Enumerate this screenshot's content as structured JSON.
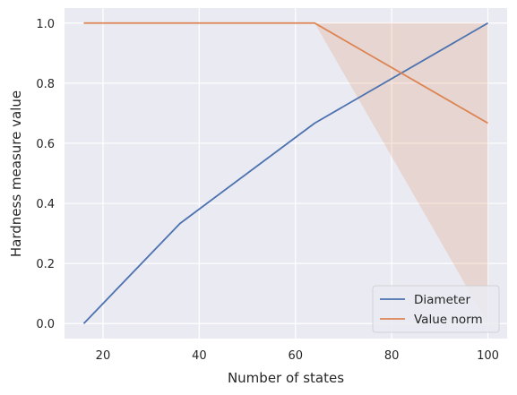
{
  "chart_data": {
    "type": "line",
    "xlabel": "Number of states",
    "ylabel": "Hardness measure value",
    "xlim": [
      12,
      104
    ],
    "ylim": [
      -0.05,
      1.05
    ],
    "xticks": [
      20,
      40,
      60,
      80,
      100
    ],
    "yticks": [
      0.0,
      0.2,
      0.4,
      0.6,
      0.8,
      1.0
    ],
    "xtick_labels": [
      "20",
      "40",
      "60",
      "80",
      "100"
    ],
    "ytick_labels": [
      "0.0",
      "0.2",
      "0.4",
      "0.6",
      "0.8",
      "1.0"
    ],
    "grid": true,
    "legend_position": "lower-right",
    "background": "#eaeaf2",
    "series": [
      {
        "name": "Diameter",
        "color": "#4c72b0",
        "x": [
          16,
          36,
          64,
          100
        ],
        "y": [
          0.0,
          0.333,
          0.667,
          1.0
        ],
        "band": null
      },
      {
        "name": "Value norm",
        "color": "#dd8452",
        "x": [
          16,
          36,
          64,
          100
        ],
        "y": [
          1.0,
          1.0,
          1.0,
          0.667
        ],
        "band": {
          "x": [
            16,
            36,
            64,
            100
          ],
          "lower": [
            1.0,
            1.0,
            1.0,
            0.0
          ],
          "upper": [
            1.0,
            1.0,
            1.0,
            1.0
          ]
        }
      }
    ]
  }
}
